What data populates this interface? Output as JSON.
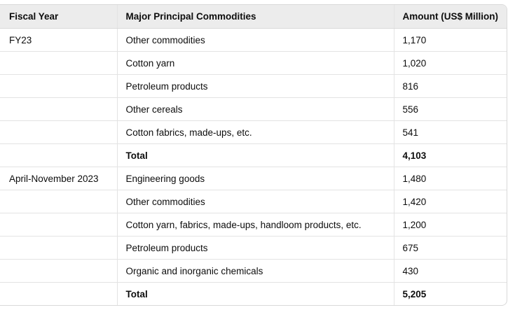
{
  "headers": {
    "fiscal_year": "Fiscal Year",
    "commodity": "Major Principal Commodities",
    "amount": "Amount (US$ Million)"
  },
  "groups": [
    {
      "year": "FY23",
      "rows": [
        {
          "commodity": "Other commodities",
          "amount": "1,170"
        },
        {
          "commodity": "Cotton yarn",
          "amount": "1,020"
        },
        {
          "commodity": "Petroleum products",
          "amount": "816"
        },
        {
          "commodity": "Other cereals",
          "amount": "556"
        },
        {
          "commodity": "Cotton fabrics, made-ups, etc.",
          "amount": "541"
        },
        {
          "commodity": "Total",
          "amount": "4,103",
          "total": true
        }
      ]
    },
    {
      "year": "April-November 2023",
      "rows": [
        {
          "commodity": "Engineering goods",
          "amount": "1,480"
        },
        {
          "commodity": "Other commodities",
          "amount": "1,420"
        },
        {
          "commodity": "Cotton yarn, fabrics, made-ups, handloom products, etc.",
          "amount": "1,200"
        },
        {
          "commodity": "Petroleum products",
          "amount": "675"
        },
        {
          "commodity": "Organic and inorganic chemicals",
          "amount": "430"
        },
        {
          "commodity": "Total",
          "amount": "5,205",
          "total": true
        }
      ]
    }
  ]
}
